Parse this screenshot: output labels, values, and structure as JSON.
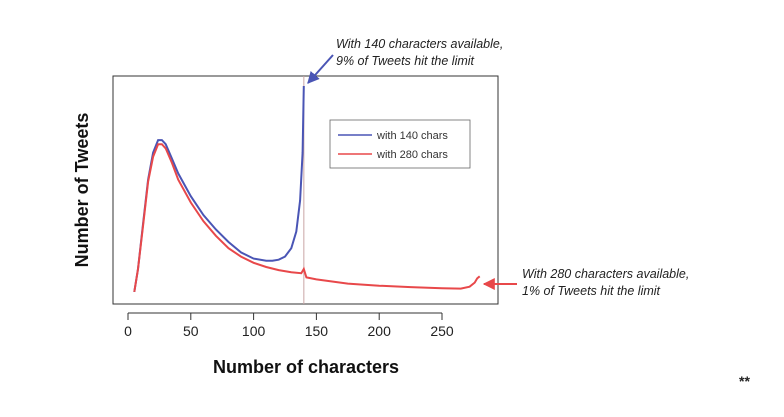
{
  "chart_data": {
    "type": "line",
    "xlabel": "Number of characters",
    "ylabel": "Number of Tweets",
    "xlim": [
      0,
      285
    ],
    "xticks": [
      0,
      50,
      100,
      150,
      200,
      250
    ],
    "xtick_labels": [
      "0",
      "50",
      "100",
      "150",
      "200",
      "250"
    ],
    "ylim": [
      0,
      105
    ],
    "grid": false,
    "legend_position": "top-right",
    "series": [
      {
        "name": "with 140 chars",
        "color": "#4a55b5",
        "x": [
          5,
          8,
          12,
          16,
          20,
          24,
          27,
          30,
          35,
          40,
          50,
          60,
          70,
          80,
          90,
          100,
          110,
          115,
          120,
          125,
          130,
          134,
          137,
          139,
          140
        ],
        "y": [
          1,
          12,
          34,
          55,
          68,
          74,
          74,
          72,
          65,
          58,
          47,
          38,
          31,
          25,
          20,
          17,
          16,
          16,
          16.5,
          18,
          22,
          30,
          45,
          68,
          100
        ]
      },
      {
        "name": "with 280 chars",
        "color": "#e8484a",
        "x": [
          5,
          8,
          12,
          16,
          20,
          24,
          27,
          30,
          35,
          40,
          50,
          60,
          70,
          80,
          90,
          100,
          110,
          120,
          130,
          138,
          140,
          142,
          150,
          175,
          200,
          225,
          250,
          265,
          272,
          276,
          278,
          280
        ],
        "y": [
          1,
          12,
          33,
          54,
          66,
          72,
          72,
          70,
          63,
          55,
          44,
          35,
          28,
          22,
          18,
          15,
          13,
          11.5,
          10.5,
          10,
          12,
          8,
          7,
          5,
          4,
          3.3,
          2.8,
          2.6,
          3.5,
          5.5,
          7.5,
          8.5
        ]
      }
    ],
    "vline": {
      "x": 140,
      "color": "#c9a6a6"
    },
    "annotations": [
      {
        "lines": [
          "With 140 characters available,",
          "9% of Tweets hit the limit"
        ],
        "arrow_color": "#4a55b5"
      },
      {
        "lines": [
          "With 280 characters available,",
          "1% of Tweets hit the limit"
        ],
        "arrow_color": "#e8484a"
      }
    ]
  },
  "corner_mark": "**"
}
